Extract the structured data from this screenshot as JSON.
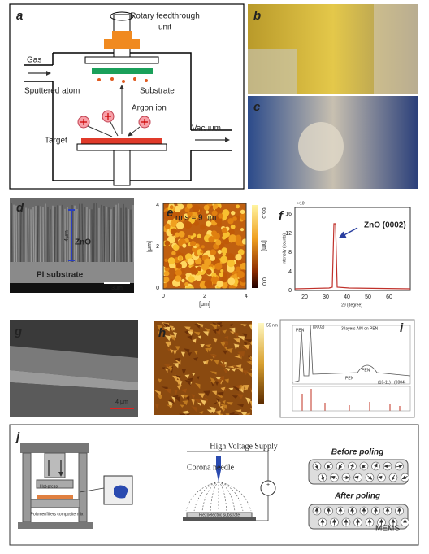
{
  "panel_a": {
    "label": "a",
    "feedthrough": [
      "Rotary feedthrough",
      "unit"
    ],
    "gas": "Gas",
    "sputtered_atom": "Sputtered atom",
    "substrate": "Substrate",
    "argon_ion": "Argon ion",
    "target": "Target",
    "vacuum": "Vacuum"
  },
  "panel_b": {
    "label": "b"
  },
  "panel_c": {
    "label": "c"
  },
  "panel_d": {
    "label": "d",
    "thickness": "4μm",
    "film": "ZnO",
    "substrate": "PI substrate",
    "scale_bar": "3μm"
  },
  "panel_e": {
    "label": "e",
    "rms": "rms = 9 nm",
    "colorbar_max": "65.6",
    "colorbar_min": "0.0",
    "colorbar_unit": "[nm]",
    "x_label": "[μm]",
    "y_label": "[μm]",
    "x_ticks": [
      "0",
      "2",
      "4"
    ],
    "y_ticks": [
      "0",
      "2",
      "4"
    ]
  },
  "panel_f": {
    "label": "f",
    "multiplier": "×10³",
    "y_label": "Intensity (counts)",
    "x_label": "2θ (degree)",
    "peak": "ZnO (0002)",
    "x_ticks": [
      "20",
      "30",
      "40",
      "50",
      "60"
    ],
    "y_ticks": [
      "0",
      "4",
      "8",
      "12",
      "16"
    ]
  },
  "panel_g": {
    "label": "g",
    "scale_bar": "4 μm"
  },
  "panel_h": {
    "label": "h",
    "colorbar_max": "55 nm"
  },
  "panel_i": {
    "label": "i",
    "title": "3 layers AlN on PEN",
    "peaks": [
      "PEN",
      "(0002)",
      "PEN",
      "PEN",
      "(10-11)",
      "(0004)"
    ]
  },
  "panel_j": {
    "label": "j",
    "hot_press": "Hot-press",
    "mix": "Polymer/fillers composite mix",
    "supply": "High Voltage Supply",
    "needle": "Corona needle",
    "substrate": "Piezoelectric substrate",
    "before": "Before poling",
    "after": "After poling"
  },
  "watermark": "MEMS"
}
